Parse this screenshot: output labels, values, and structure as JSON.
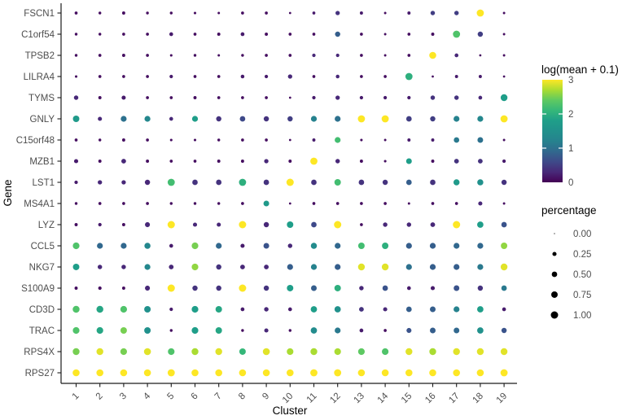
{
  "figure": {
    "background": "#ffffff"
  },
  "colors": {
    "axis_text": "#4d4d4d",
    "axis_title": "#000000",
    "axis_line": "#1a1a1a",
    "size_legend_dot": "#000000",
    "viridis_stops": [
      "#440154",
      "#482878",
      "#3e4989",
      "#31688e",
      "#26828e",
      "#21918c",
      "#1f9e89",
      "#35b779",
      "#5ec962",
      "#aadc32",
      "#fde725"
    ]
  },
  "chart_data": {
    "type": "scatter",
    "subtype": "dot-plot",
    "title": "",
    "xlabel": "Cluster",
    "ylabel": "Gene",
    "grid": false,
    "legend_position": "right",
    "x_categories": [
      "1",
      "2",
      "3",
      "4",
      "5",
      "6",
      "7",
      "8",
      "9",
      "10",
      "11",
      "12",
      "13",
      "14",
      "15",
      "16",
      "17",
      "18",
      "19"
    ],
    "color_legend": {
      "title": "log(mean + 0.1)",
      "domain": [
        0,
        3
      ],
      "tick_values": [
        3,
        2,
        1,
        0
      ],
      "tick_labels": [
        "3",
        "2",
        "1",
        "0"
      ],
      "palette": "viridis"
    },
    "size_legend": {
      "title": "percentage",
      "values": [
        0,
        0.25,
        0.5,
        0.75,
        1
      ],
      "labels": [
        "0.00",
        "0.25",
        "0.50",
        "0.75",
        "1.00"
      ]
    },
    "series": [
      {
        "gene": "FSCN1",
        "log_mean": [
          0.1,
          0.1,
          0.1,
          0.1,
          0.1,
          0.1,
          0.1,
          0.1,
          0.1,
          0.1,
          0.2,
          0.4,
          0.2,
          0.1,
          0.2,
          0.5,
          0.5,
          3.0,
          0.1
        ],
        "percentage": [
          0.1,
          0.08,
          0.12,
          0.08,
          0.08,
          0.06,
          0.05,
          0.1,
          0.1,
          0.04,
          0.1,
          0.28,
          0.12,
          0.05,
          0.12,
          0.3,
          0.3,
          0.95,
          0.05
        ]
      },
      {
        "gene": "C1orf54",
        "log_mean": [
          0.1,
          0.1,
          0.1,
          0.1,
          0.2,
          0.1,
          0.1,
          0.2,
          0.1,
          0.1,
          0.1,
          0.8,
          0.1,
          0.1,
          0.1,
          0.1,
          2.3,
          0.5,
          0.1
        ],
        "percentage": [
          0.08,
          0.08,
          0.1,
          0.1,
          0.2,
          0.1,
          0.12,
          0.2,
          0.12,
          0.1,
          0.1,
          0.45,
          0.1,
          0.05,
          0.1,
          0.12,
          0.95,
          0.45,
          0.05
        ]
      },
      {
        "gene": "TPSB2",
        "log_mean": [
          0.1,
          0.1,
          0.1,
          0.1,
          0.1,
          0.1,
          0.1,
          0.1,
          0.1,
          0.1,
          0.3,
          0.3,
          0.1,
          0.1,
          0.1,
          3.0,
          0.3,
          0.1,
          0.1
        ],
        "percentage": [
          0.08,
          0.1,
          0.12,
          0.1,
          0.06,
          0.08,
          0.05,
          0.08,
          0.1,
          0.1,
          0.15,
          0.15,
          0.1,
          0.05,
          0.1,
          0.9,
          0.2,
          0.04,
          0.05
        ]
      },
      {
        "gene": "LILRA4",
        "log_mean": [
          0.1,
          0.1,
          0.1,
          0.1,
          0.2,
          0.1,
          0.1,
          0.2,
          0.2,
          0.3,
          0.1,
          0.3,
          0.1,
          0.1,
          2.0,
          0.1,
          0.2,
          0.2,
          0.1
        ],
        "percentage": [
          0.06,
          0.1,
          0.1,
          0.1,
          0.15,
          0.1,
          0.1,
          0.18,
          0.15,
          0.28,
          0.1,
          0.18,
          0.1,
          0.1,
          0.95,
          0.04,
          0.12,
          0.12,
          0.04
        ]
      },
      {
        "gene": "TYMS",
        "log_mean": [
          0.3,
          0.1,
          0.2,
          0.1,
          0.1,
          0.1,
          0.1,
          0.1,
          0.1,
          0.1,
          0.2,
          0.3,
          0.2,
          0.2,
          0.2,
          0.4,
          0.4,
          0.3,
          1.8
        ],
        "percentage": [
          0.3,
          0.12,
          0.25,
          0.1,
          0.1,
          0.12,
          0.1,
          0.1,
          0.1,
          0.04,
          0.15,
          0.28,
          0.15,
          0.15,
          0.15,
          0.3,
          0.3,
          0.2,
          0.85
        ]
      },
      {
        "gene": "GNLY",
        "log_mean": [
          1.7,
          0.3,
          1.0,
          1.3,
          0.3,
          1.8,
          0.4,
          0.6,
          0.4,
          0.5,
          1.2,
          1.0,
          3.0,
          3.0,
          0.5,
          0.5,
          1.2,
          1.3,
          3.0
        ],
        "percentage": [
          0.75,
          0.25,
          0.6,
          0.6,
          0.2,
          0.6,
          0.45,
          0.5,
          0.45,
          0.45,
          0.6,
          0.6,
          0.95,
          0.95,
          0.5,
          0.45,
          0.6,
          0.6,
          0.95
        ]
      },
      {
        "gene": "C15orf48",
        "log_mean": [
          0.1,
          0.1,
          0.1,
          0.1,
          0.1,
          0.1,
          0.1,
          0.1,
          0.1,
          0.1,
          0.2,
          2.2,
          0.1,
          0.1,
          0.2,
          0.2,
          1.1,
          1.0,
          0.1
        ],
        "percentage": [
          0.1,
          0.08,
          0.12,
          0.1,
          0.06,
          0.06,
          0.08,
          0.1,
          0.1,
          0.04,
          0.12,
          0.6,
          0.06,
          0.05,
          0.12,
          0.12,
          0.5,
          0.55,
          0.05
        ]
      },
      {
        "gene": "MZB1",
        "log_mean": [
          0.2,
          0.1,
          0.3,
          0.1,
          0.1,
          0.1,
          0.1,
          0.1,
          0.3,
          0.1,
          3.0,
          0.3,
          0.1,
          0.1,
          1.8,
          0.1,
          0.4,
          0.4,
          0.2
        ],
        "percentage": [
          0.25,
          0.12,
          0.35,
          0.12,
          0.1,
          0.1,
          0.12,
          0.12,
          0.28,
          0.12,
          0.95,
          0.3,
          0.12,
          0.06,
          0.55,
          0.12,
          0.35,
          0.35,
          0.15
        ]
      },
      {
        "gene": "LST1",
        "log_mean": [
          0.2,
          0.3,
          0.3,
          0.3,
          2.2,
          0.4,
          0.4,
          2.0,
          0.4,
          3.0,
          0.4,
          2.2,
          0.4,
          0.4,
          0.8,
          0.4,
          1.7,
          1.5,
          0.4
        ],
        "percentage": [
          0.15,
          0.28,
          0.28,
          0.45,
          0.95,
          0.5,
          0.5,
          0.95,
          0.5,
          1.0,
          0.5,
          0.75,
          0.5,
          0.45,
          0.5,
          0.5,
          0.65,
          0.65,
          0.45
        ]
      },
      {
        "gene": "MS4A1",
        "log_mean": [
          0.1,
          0.1,
          0.1,
          0.1,
          0.1,
          0.1,
          0.1,
          0.1,
          1.7,
          0.1,
          0.1,
          0.1,
          0.1,
          0.1,
          0.1,
          0.1,
          0.1,
          0.3,
          0.1
        ],
        "percentage": [
          0.08,
          0.1,
          0.1,
          0.1,
          0.08,
          0.08,
          0.08,
          0.1,
          0.55,
          0.04,
          0.1,
          0.1,
          0.1,
          0.1,
          0.05,
          0.1,
          0.1,
          0.25,
          0.05
        ]
      },
      {
        "gene": "LYZ",
        "log_mean": [
          0.1,
          0.2,
          0.1,
          0.3,
          3.0,
          0.3,
          0.3,
          3.0,
          0.3,
          1.8,
          0.6,
          3.0,
          0.1,
          0.3,
          0.3,
          0.3,
          3.0,
          1.8,
          0.7
        ],
        "percentage": [
          0.12,
          0.15,
          0.12,
          0.4,
          1.0,
          0.25,
          0.25,
          1.0,
          0.45,
          0.75,
          0.5,
          1.0,
          0.1,
          0.3,
          0.3,
          0.35,
          1.0,
          0.7,
          0.5
        ]
      },
      {
        "gene": "CCL5",
        "log_mean": [
          2.3,
          0.9,
          0.9,
          1.3,
          0.2,
          2.5,
          0.9,
          0.2,
          0.7,
          0.3,
          1.4,
          0.9,
          2.2,
          2.0,
          0.8,
          0.8,
          0.9,
          0.9,
          2.6
        ],
        "percentage": [
          0.8,
          0.6,
          0.6,
          0.65,
          0.2,
          0.8,
          0.6,
          0.25,
          0.55,
          0.3,
          0.65,
          0.6,
          0.75,
          0.75,
          0.6,
          0.6,
          0.6,
          0.6,
          0.75
        ]
      },
      {
        "gene": "NKG7",
        "log_mean": [
          1.8,
          0.3,
          0.3,
          1.3,
          0.3,
          2.6,
          0.4,
          0.3,
          0.3,
          0.8,
          1.2,
          0.8,
          2.9,
          2.9,
          1.0,
          0.8,
          0.8,
          1.1,
          2.9
        ],
        "percentage": [
          0.75,
          0.3,
          0.3,
          0.6,
          0.35,
          0.8,
          0.45,
          0.35,
          0.35,
          0.6,
          0.6,
          0.6,
          0.85,
          0.85,
          0.6,
          0.6,
          0.6,
          0.6,
          0.85
        ]
      },
      {
        "gene": "S100A9",
        "log_mean": [
          0.1,
          0.1,
          0.1,
          0.3,
          3.0,
          0.4,
          0.4,
          3.0,
          0.4,
          1.8,
          0.8,
          2.0,
          0.3,
          0.7,
          0.2,
          0.2,
          0.7,
          0.4,
          1.1
        ],
        "percentage": [
          0.12,
          0.15,
          0.12,
          0.4,
          1.0,
          0.45,
          0.45,
          1.0,
          0.45,
          0.75,
          0.55,
          0.75,
          0.3,
          0.5,
          0.2,
          0.25,
          0.55,
          0.45,
          0.5
        ]
      },
      {
        "gene": "CD3D",
        "log_mean": [
          2.3,
          1.9,
          2.3,
          1.5,
          0.2,
          1.8,
          1.9,
          0.2,
          0.3,
          0.2,
          1.8,
          1.5,
          0.4,
          0.3,
          0.8,
          0.8,
          1.2,
          1.8,
          0.2
        ],
        "percentage": [
          0.85,
          0.85,
          0.8,
          0.75,
          0.15,
          0.8,
          0.75,
          0.2,
          0.3,
          0.2,
          0.7,
          0.7,
          0.35,
          0.25,
          0.5,
          0.55,
          0.6,
          0.7,
          0.2
        ]
      },
      {
        "gene": "TRAC",
        "log_mean": [
          2.3,
          1.9,
          2.5,
          1.5,
          0.1,
          1.8,
          1.9,
          0.1,
          0.3,
          0.1,
          1.4,
          1.1,
          0.2,
          0.1,
          0.7,
          0.8,
          0.9,
          1.5,
          0.7
        ],
        "percentage": [
          0.8,
          0.8,
          0.75,
          0.75,
          0.08,
          0.8,
          0.75,
          0.08,
          0.25,
          0.08,
          0.7,
          0.6,
          0.2,
          0.1,
          0.4,
          0.55,
          0.55,
          0.7,
          0.45
        ]
      },
      {
        "gene": "RPS4X",
        "log_mean": [
          2.5,
          2.9,
          2.5,
          2.9,
          2.3,
          2.7,
          2.9,
          2.1,
          2.9,
          2.7,
          2.7,
          2.7,
          2.4,
          2.3,
          2.9,
          2.7,
          2.9,
          2.9,
          2.9
        ],
        "percentage": [
          0.85,
          0.85,
          0.8,
          0.9,
          0.8,
          0.85,
          0.85,
          0.75,
          0.9,
          0.8,
          0.85,
          0.8,
          0.8,
          0.8,
          0.85,
          0.85,
          0.85,
          0.85,
          0.85
        ]
      },
      {
        "gene": "RPS27",
        "log_mean": [
          3.0,
          3.0,
          3.0,
          3.0,
          3.0,
          3.0,
          3.0,
          3.0,
          3.0,
          3.0,
          3.0,
          3.0,
          3.0,
          3.0,
          3.0,
          3.0,
          3.0,
          3.0,
          3.0
        ],
        "percentage": [
          0.9,
          0.9,
          0.9,
          0.9,
          0.95,
          0.9,
          0.9,
          0.9,
          0.9,
          0.9,
          0.95,
          0.95,
          0.9,
          0.9,
          0.9,
          0.9,
          0.9,
          0.9,
          0.95
        ]
      }
    ]
  }
}
